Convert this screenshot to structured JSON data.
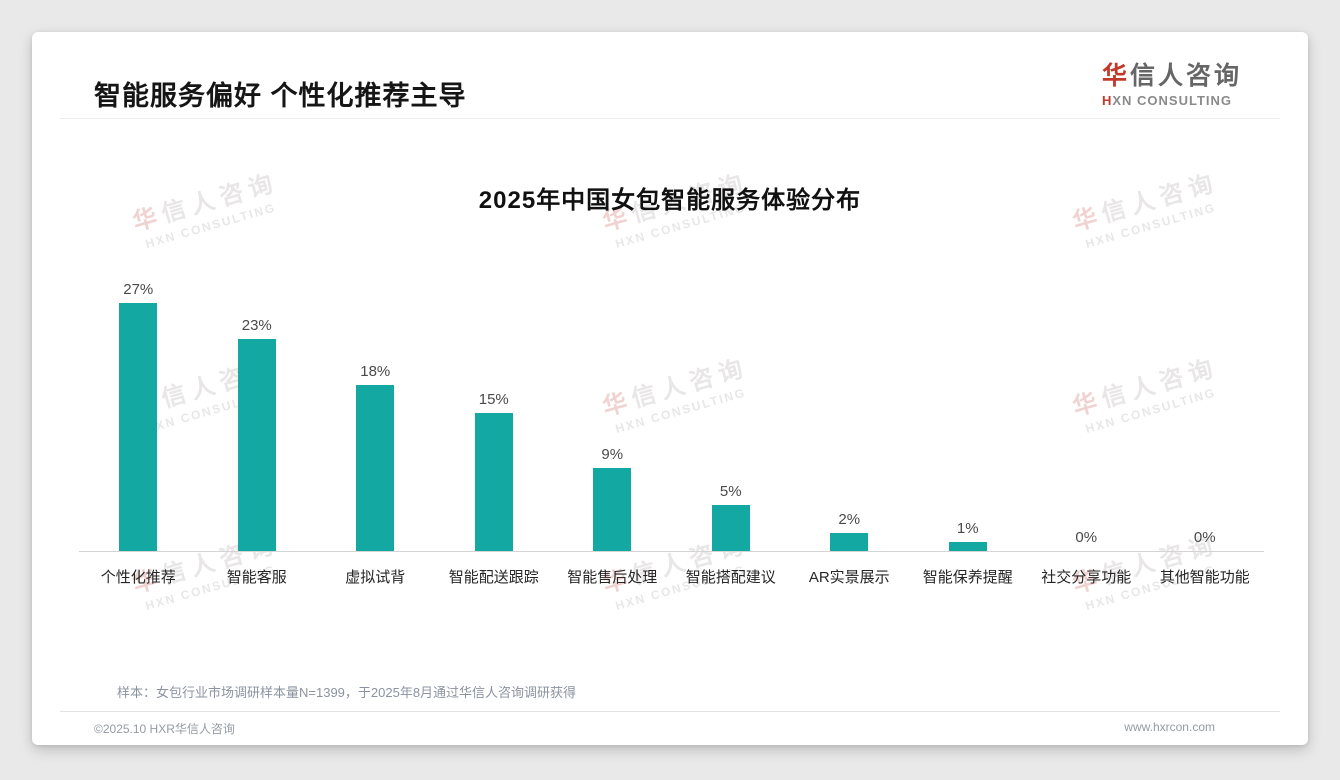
{
  "page": {
    "title": "智能服务偏好 个性化推荐主导"
  },
  "logo": {
    "cn_accent": "华",
    "cn_rest": "信人咨询",
    "en_accent": "H",
    "en_rest": "XN CONSULTING",
    "accent_color": "#c0392b"
  },
  "watermark": {
    "cn_accent": "华",
    "cn_rest": "信人咨询",
    "en": "HXN CONSULTING"
  },
  "chart_data": {
    "type": "bar",
    "title": "2025年中国女包智能服务体验分布",
    "categories": [
      "个性化推荐",
      "智能客服",
      "虚拟试背",
      "智能配送跟踪",
      "智能售后处理",
      "智能搭配建议",
      "AR实景展示",
      "智能保养提醒",
      "社交分享功能",
      "其他智能功能"
    ],
    "values": [
      27,
      23,
      18,
      15,
      9,
      5,
      2,
      1,
      0,
      0
    ],
    "unit": "%",
    "value_labels": [
      "27%",
      "23%",
      "18%",
      "15%",
      "9%",
      "5%",
      "2%",
      "1%",
      "0%",
      "0%"
    ],
    "bar_color": "#14a8a2",
    "xlabel": "",
    "ylabel": "",
    "ylim": [
      0,
      30
    ],
    "grid": false,
    "legend_position": "none",
    "value_labels_shown": true
  },
  "footer": {
    "note": "样本：女包行业市场调研样本量N=1399，于2025年8月通过华信人咨询调研获得",
    "copyright": "©2025.10 HXR华信人咨询",
    "website": "www.hxrcon.com"
  }
}
